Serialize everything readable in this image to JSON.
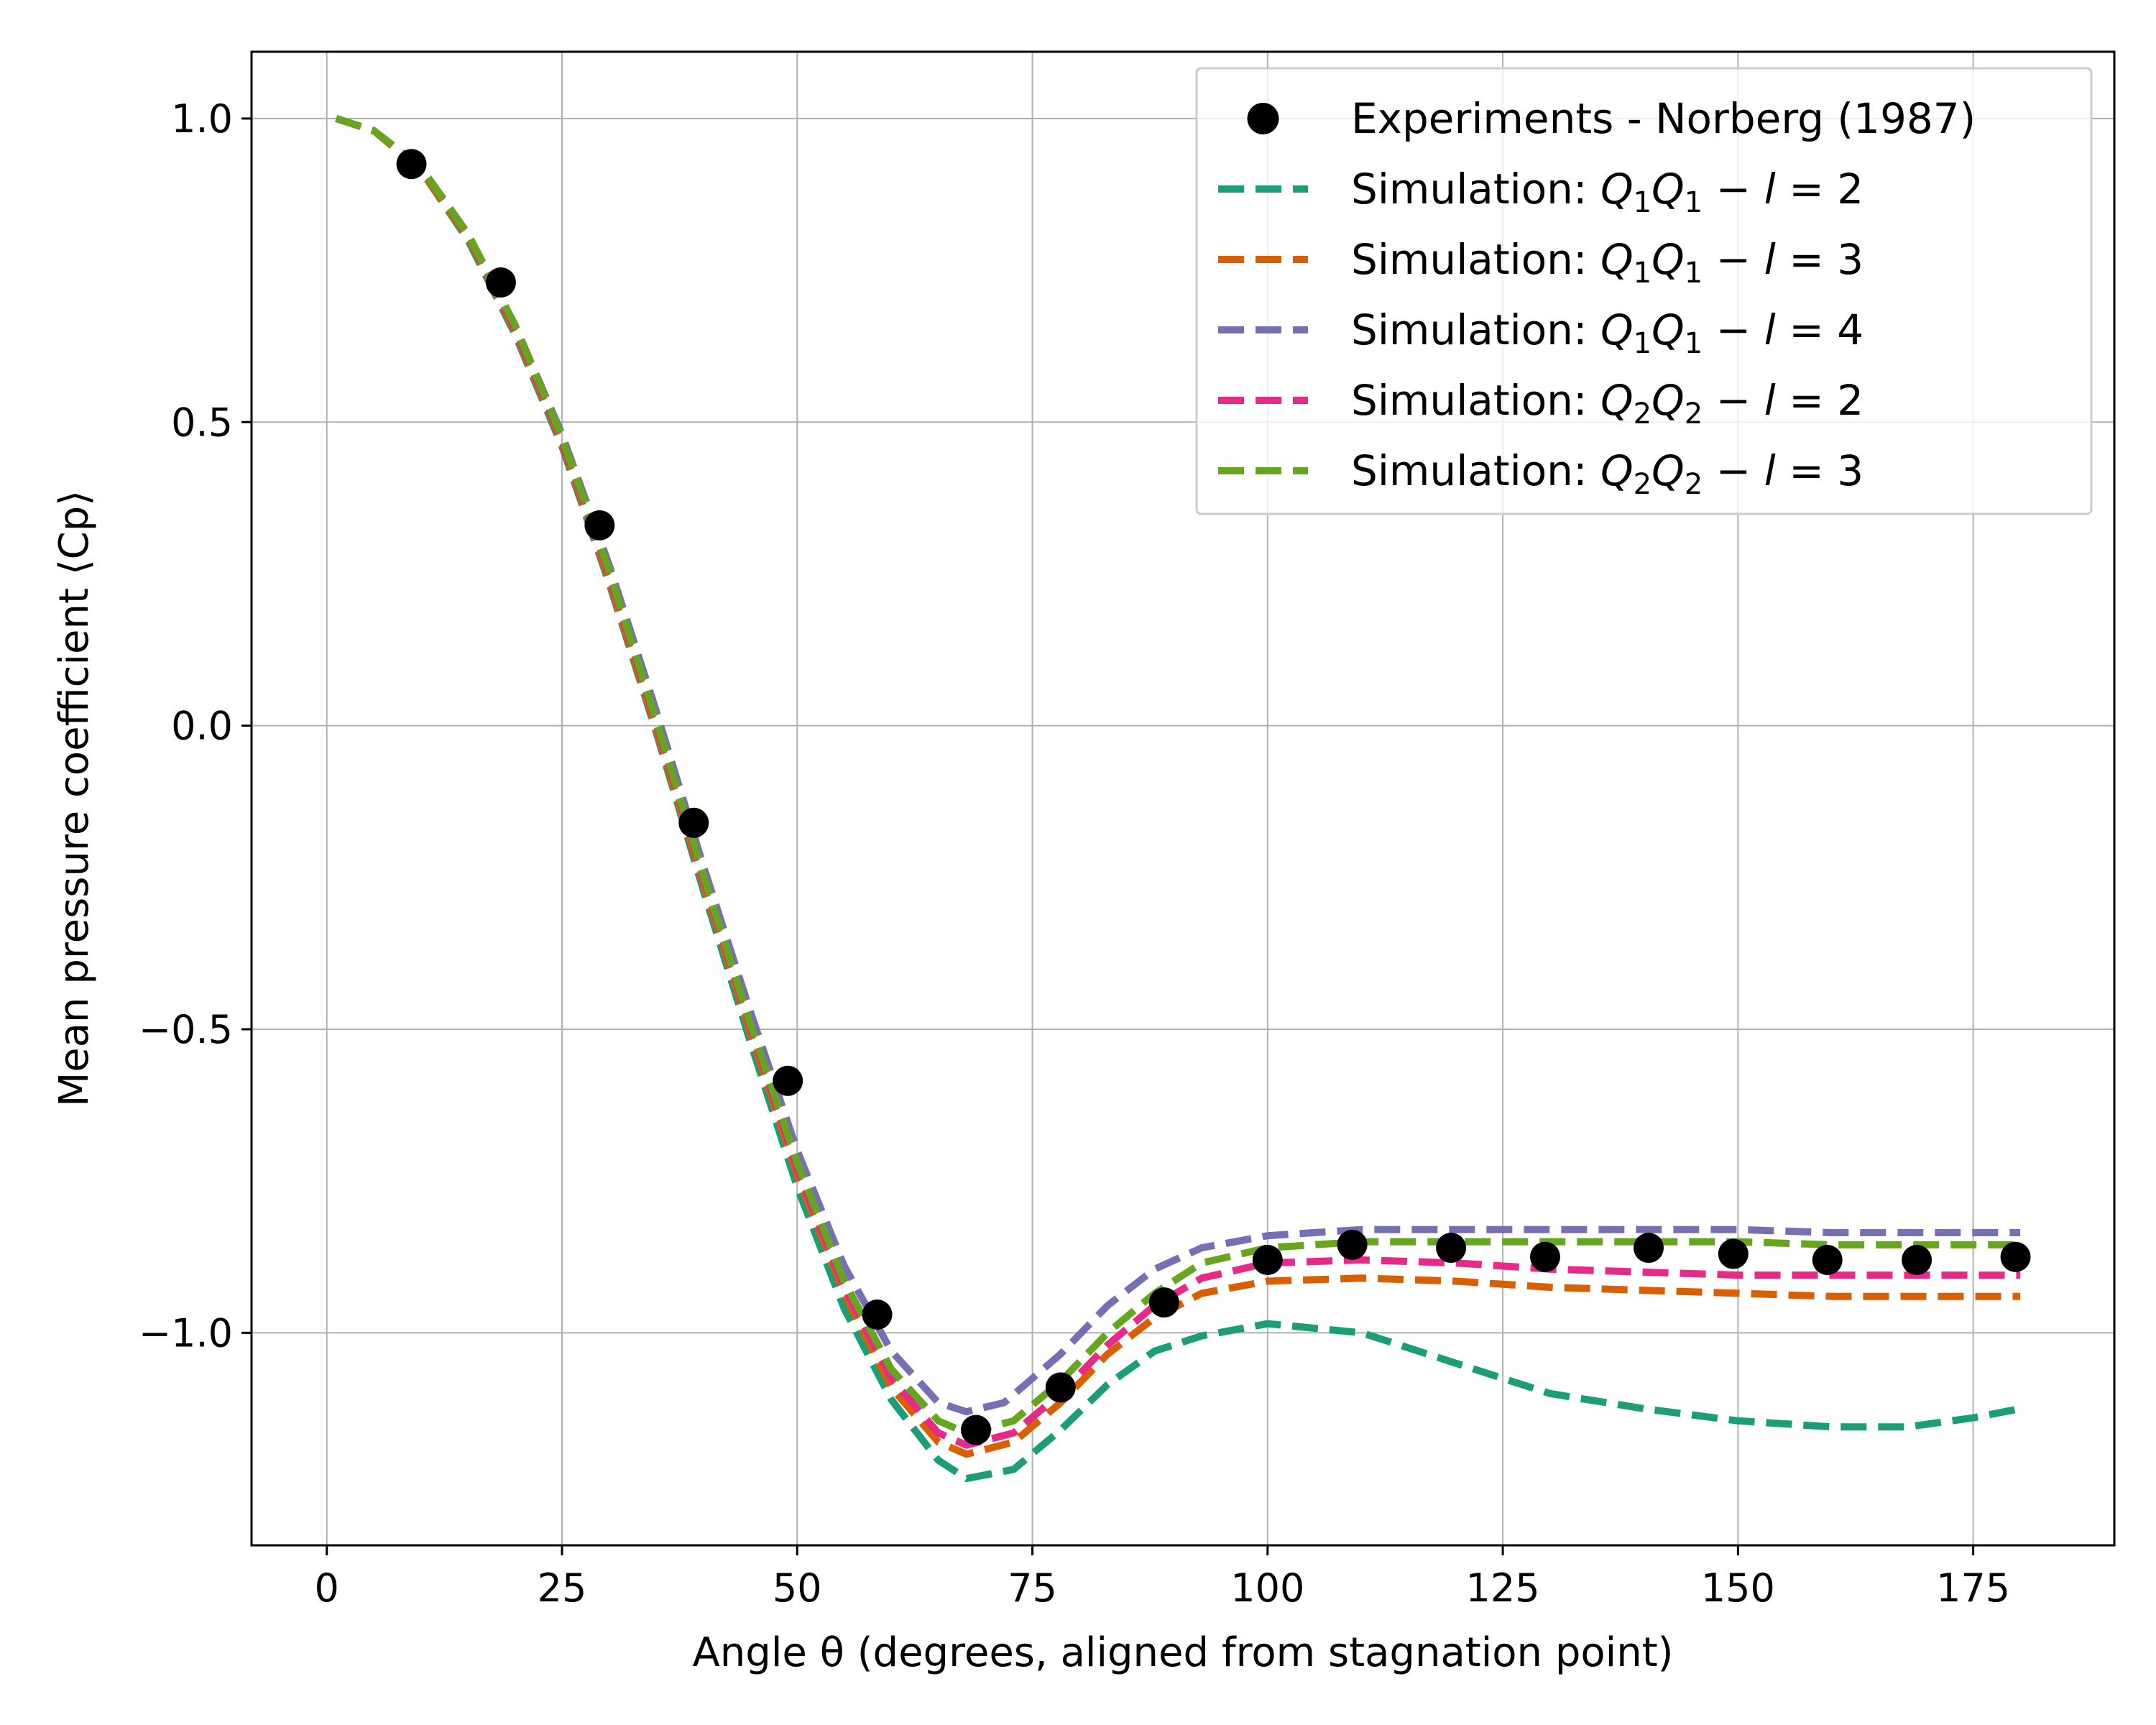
{
  "chart_data": {
    "type": "line",
    "xlabel": "Angle θ (degrees, aligned from stagnation point)",
    "ylabel": "Mean pressure coefficient ⟨Cp⟩",
    "xlim": [
      -8,
      190
    ],
    "ylim": [
      -1.35,
      1.11
    ],
    "xticks": [
      0,
      25,
      50,
      75,
      100,
      125,
      150,
      175
    ],
    "yticks": [
      1.0,
      0.5,
      0.0,
      -0.5,
      -1.0
    ],
    "xtick_labels": [
      "0",
      "25",
      "50",
      "75",
      "100",
      "125",
      "150",
      "175"
    ],
    "ytick_labels": [
      "1.0",
      "0.5",
      "0.0",
      "−0.5",
      "−1.0"
    ],
    "grid": true,
    "legend_position": "top-right",
    "experiments": {
      "name": "Experiments - Norberg (1987)",
      "color": "#000000",
      "marker": "circle",
      "x": [
        9,
        18.5,
        29,
        39,
        49,
        58.5,
        69,
        78,
        89,
        100,
        109,
        119.5,
        129.5,
        140.5,
        149.5,
        159.5,
        169,
        179.5
      ],
      "y": [
        0.925,
        0.73,
        0.33,
        -0.16,
        -0.585,
        -0.97,
        -1.16,
        -1.09,
        -0.95,
        -0.88,
        -0.855,
        -0.86,
        -0.875,
        -0.86,
        -0.87,
        -0.88,
        -0.88,
        -0.875
      ]
    },
    "series": [
      {
        "name_prefix": "Simulation: ",
        "label_parts": {
          "a": "Q",
          "a_sub": "1",
          "b": "Q",
          "b_sub": "1",
          "l": "l",
          "eq": "2"
        },
        "color": "#1b9e77",
        "x": [
          1,
          5,
          10,
          15,
          20,
          25,
          30,
          35,
          40,
          45,
          50,
          55,
          60,
          65,
          68,
          73,
          78,
          83,
          88,
          93,
          100,
          110,
          120,
          130,
          140,
          150,
          160,
          168,
          175,
          180
        ],
        "y": [
          1.0,
          0.98,
          0.915,
          0.8,
          0.645,
          0.46,
          0.235,
          -0.01,
          -0.27,
          -0.52,
          -0.76,
          -0.96,
          -1.11,
          -1.21,
          -1.24,
          -1.225,
          -1.16,
          -1.085,
          -1.03,
          -1.005,
          -0.985,
          -1.0,
          -1.05,
          -1.1,
          -1.125,
          -1.145,
          -1.155,
          -1.155,
          -1.14,
          -1.125
        ]
      },
      {
        "name_prefix": "Simulation: ",
        "label_parts": {
          "a": "Q",
          "a_sub": "1",
          "b": "Q",
          "b_sub": "1",
          "l": "l",
          "eq": "3"
        },
        "color": "#d95f02",
        "x": [
          1,
          5,
          10,
          15,
          20,
          25,
          30,
          35,
          40,
          45,
          50,
          55,
          60,
          65,
          68,
          73,
          78,
          83,
          88,
          93,
          100,
          110,
          120,
          130,
          140,
          150,
          160,
          170,
          180
        ],
        "y": [
          1.0,
          0.98,
          0.915,
          0.805,
          0.65,
          0.465,
          0.24,
          -0.005,
          -0.26,
          -0.505,
          -0.74,
          -0.935,
          -1.09,
          -1.18,
          -1.2,
          -1.18,
          -1.115,
          -1.035,
          -0.975,
          -0.935,
          -0.915,
          -0.91,
          -0.915,
          -0.925,
          -0.93,
          -0.935,
          -0.94,
          -0.94,
          -0.94
        ]
      },
      {
        "name_prefix": "Simulation: ",
        "label_parts": {
          "a": "Q",
          "a_sub": "1",
          "b": "Q",
          "b_sub": "1",
          "l": "l",
          "eq": "4"
        },
        "color": "#7570b3",
        "x": [
          1,
          5,
          10,
          15,
          20,
          25,
          30,
          35,
          40,
          45,
          50,
          55,
          60,
          65,
          68,
          72,
          78,
          83,
          88,
          93,
          100,
          110,
          120,
          130,
          140,
          150,
          160,
          170,
          180
        ],
        "y": [
          1.0,
          0.98,
          0.92,
          0.81,
          0.66,
          0.48,
          0.265,
          0.025,
          -0.23,
          -0.47,
          -0.7,
          -0.89,
          -1.03,
          -1.115,
          -1.13,
          -1.115,
          -1.035,
          -0.955,
          -0.895,
          -0.86,
          -0.84,
          -0.83,
          -0.83,
          -0.83,
          -0.83,
          -0.83,
          -0.835,
          -0.835,
          -0.835
        ]
      },
      {
        "name_prefix": "Simulation: ",
        "label_parts": {
          "a": "Q",
          "a_sub": "2",
          "b": "Q",
          "b_sub": "2",
          "l": "l",
          "eq": "2"
        },
        "color": "#e7298a",
        "x": [
          1,
          5,
          10,
          15,
          20,
          25,
          30,
          35,
          40,
          45,
          50,
          55,
          60,
          65,
          68,
          73,
          78,
          83,
          88,
          93,
          100,
          110,
          120,
          130,
          140,
          150,
          160,
          170,
          180
        ],
        "y": [
          1.0,
          0.98,
          0.92,
          0.81,
          0.655,
          0.47,
          0.25,
          0.005,
          -0.25,
          -0.495,
          -0.73,
          -0.925,
          -1.075,
          -1.165,
          -1.185,
          -1.165,
          -1.1,
          -1.02,
          -0.955,
          -0.91,
          -0.885,
          -0.88,
          -0.885,
          -0.895,
          -0.9,
          -0.905,
          -0.905,
          -0.905,
          -0.905
        ]
      },
      {
        "name_prefix": "Simulation: ",
        "label_parts": {
          "a": "Q",
          "a_sub": "2",
          "b": "Q",
          "b_sub": "2",
          "l": "l",
          "eq": "3"
        },
        "color": "#66a61e",
        "x": [
          1,
          5,
          10,
          15,
          20,
          25,
          30,
          35,
          40,
          45,
          50,
          55,
          60,
          65,
          68,
          73,
          78,
          83,
          88,
          93,
          100,
          110,
          120,
          130,
          140,
          150,
          160,
          170,
          180
        ],
        "y": [
          1.0,
          0.98,
          0.92,
          0.81,
          0.66,
          0.475,
          0.255,
          0.01,
          -0.245,
          -0.49,
          -0.72,
          -0.915,
          -1.06,
          -1.145,
          -1.165,
          -1.145,
          -1.08,
          -1.0,
          -0.935,
          -0.885,
          -0.86,
          -0.85,
          -0.85,
          -0.85,
          -0.85,
          -0.85,
          -0.855,
          -0.855,
          -0.855
        ]
      }
    ]
  }
}
